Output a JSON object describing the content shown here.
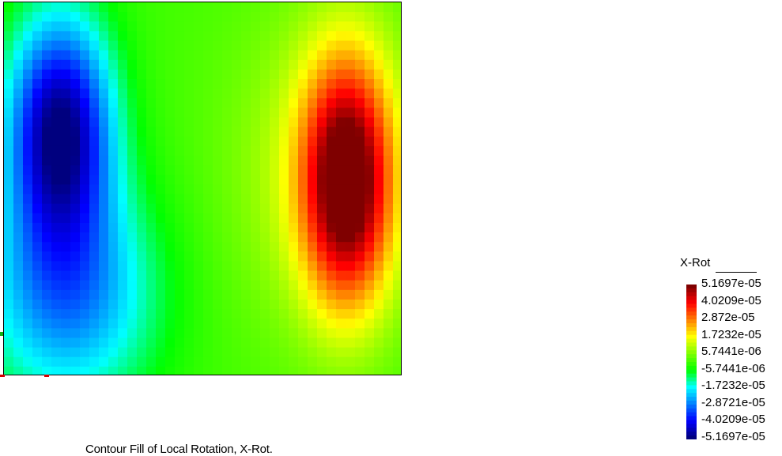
{
  "chart_data": {
    "type": "heatmap",
    "title": "",
    "caption": "Contour Fill of Local Rotation, X-Rot.",
    "legend": {
      "title": "X-Rot",
      "placement": "right",
      "labels": [
        "5.1697e-05",
        "4.0209e-05",
        "2.872e-05",
        "1.7232e-05",
        "5.7441e-06",
        "-5.7441e-06",
        "-1.7232e-05",
        "-2.8721e-05",
        "-4.0209e-05",
        "-5.1697e-05"
      ],
      "min": -5.1697e-05,
      "max": 5.1697e-05
    },
    "colormap": [
      "#00007f",
      "#0000ff",
      "#007fff",
      "#00ffff",
      "#00ff00",
      "#7fff00",
      "#ffff00",
      "#ff7f00",
      "#ff0000",
      "#7f0000"
    ],
    "field": {
      "description_of_extrema": "negative lobe left, positive lobe right",
      "negative_peak_value": -5.1697e-05,
      "positive_peak_value": 5.1697e-05
    }
  }
}
